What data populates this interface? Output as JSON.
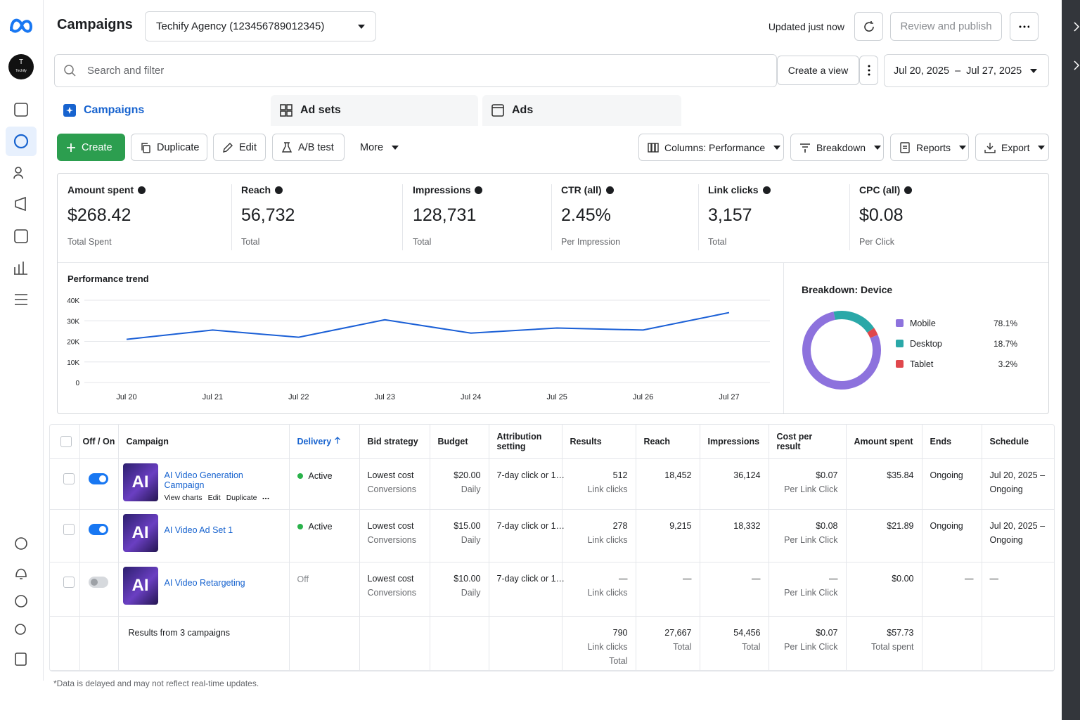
{
  "header": {
    "title": "Campaigns",
    "account": "Techify Agency (123456789012345)",
    "status": "Updated just now",
    "publish": "Review and publish"
  },
  "sidebar": {
    "avatar_letter": "T",
    "avatar_name": "Techify"
  },
  "search": {
    "placeholder": "Search and filter",
    "create_view": "Create a view",
    "date_range": "Jul 20, 2025  –  Jul 27, 2025"
  },
  "tabs": [
    "Campaigns",
    "Ad sets",
    "Ads"
  ],
  "active_tab": 0,
  "toolbar": {
    "left": [
      "Create",
      "Duplicate",
      "Edit",
      "A/B test",
      "More"
    ],
    "right": [
      "Columns: Performance",
      "Breakdown",
      "Reports",
      "Export"
    ]
  },
  "metrics": [
    {
      "label": "Amount spent",
      "value": "$268.42",
      "sub": "Total Spent"
    },
    {
      "label": "Reach",
      "value": "56,732",
      "sub": "Total"
    },
    {
      "label": "Impressions",
      "value": "128,731",
      "sub": "Total"
    },
    {
      "label": "CTR (all)",
      "value": "2.45%",
      "sub": "Per Impression"
    },
    {
      "label": "Link clicks",
      "value": "3,157",
      "sub": "Total"
    },
    {
      "label": "CPC (all)",
      "value": "$0.08",
      "sub": "Per Click"
    }
  ],
  "chart_data": [
    {
      "type": "line",
      "title": "Performance trend",
      "categories": [
        "Jul 20",
        "Jul 21",
        "Jul 22",
        "Jul 23",
        "Jul 24",
        "Jul 25",
        "Jul 26",
        "Jul 27"
      ],
      "values": [
        21000,
        25500,
        22000,
        30500,
        24000,
        26500,
        25500,
        34000
      ],
      "color": "#1a5fd6",
      "ylim": [
        0,
        40000
      ],
      "yticks": [
        0,
        {
          "value": 10000,
          "label": "10K"
        },
        {
          "value": 20000,
          "label": "20K"
        },
        {
          "value": 30000,
          "label": "30K"
        },
        {
          "value": 40000,
          "label": "40K"
        }
      ],
      "grid": true
    },
    {
      "type": "pie",
      "title": "Breakdown: Device",
      "categories": [
        "Mobile",
        "Desktop",
        "Tablet"
      ],
      "values": [
        78.1,
        18.7,
        3.2
      ],
      "value_labels": [
        "78.1%",
        "18.7%",
        "3.2%"
      ],
      "colors": [
        "#8d72dd",
        "#2aa8a8",
        "#e0474c"
      ]
    }
  ],
  "table": {
    "columns": [
      "Off / On",
      "Campaign",
      "Delivery",
      "Bid strategy",
      "Budget",
      "Attribution setting",
      "Results",
      "Reach",
      "Impressions",
      "Cost per result",
      "Amount spent",
      "Ends",
      "Schedule"
    ],
    "sort_column": 2,
    "rows": [
      {
        "on": true,
        "thumb": "AI",
        "name": "AI Video Generation Campaign",
        "actions": [
          "View charts",
          "Edit",
          "Duplicate"
        ],
        "delivery": "Active",
        "bid": [
          "Lowest cost",
          "Conversions"
        ],
        "budget": [
          "$20.00",
          "Daily"
        ],
        "attribution": "7-day click or 1…",
        "results": [
          "512",
          "Link clicks"
        ],
        "reach": "18,452",
        "impressions": "36,124",
        "cost": [
          "$0.07",
          "Per Link Click"
        ],
        "amount": "$35.84",
        "ends": "Ongoing",
        "schedule": [
          "Jul 20, 2025 –",
          "Ongoing"
        ]
      },
      {
        "on": true,
        "thumb": "AI",
        "name": "AI Video Ad Set 1",
        "actions": [],
        "delivery": "Active",
        "bid": [
          "Lowest cost",
          "Conversions"
        ],
        "budget": [
          "$15.00",
          "Daily"
        ],
        "attribution": "7-day click or 1…",
        "results": [
          "278",
          "Link clicks"
        ],
        "reach": "9,215",
        "impressions": "18,332",
        "cost": [
          "$0.08",
          "Per Link Click"
        ],
        "amount": "$21.89",
        "ends": "Ongoing",
        "schedule": [
          "Jul 20, 2025 –",
          "Ongoing"
        ]
      },
      {
        "on": false,
        "thumb": "AI",
        "name": "AI Video Retargeting",
        "actions": [],
        "delivery": "Off",
        "bid": [
          "Lowest cost",
          "Conversions"
        ],
        "budget": [
          "$10.00",
          "Daily"
        ],
        "attribution": "7-day click or 1…",
        "results": [
          "—",
          "Link clicks"
        ],
        "reach": "—",
        "impressions": "—",
        "cost": [
          "—",
          "Per Link Click"
        ],
        "amount": "$0.00",
        "ends": "—",
        "schedule": [
          "—"
        ]
      }
    ],
    "summary": {
      "label": "Results from 3 campaigns",
      "results": [
        "790",
        "Link clicks",
        "Total"
      ],
      "reach": [
        "27,667",
        "Total"
      ],
      "impressions": [
        "54,456",
        "Total"
      ],
      "cost": [
        "$0.07",
        "Per Link Click"
      ],
      "amount": [
        "$57.73",
        "Total spent"
      ]
    }
  },
  "note": "*Data is delayed and may not reflect real-time updates."
}
